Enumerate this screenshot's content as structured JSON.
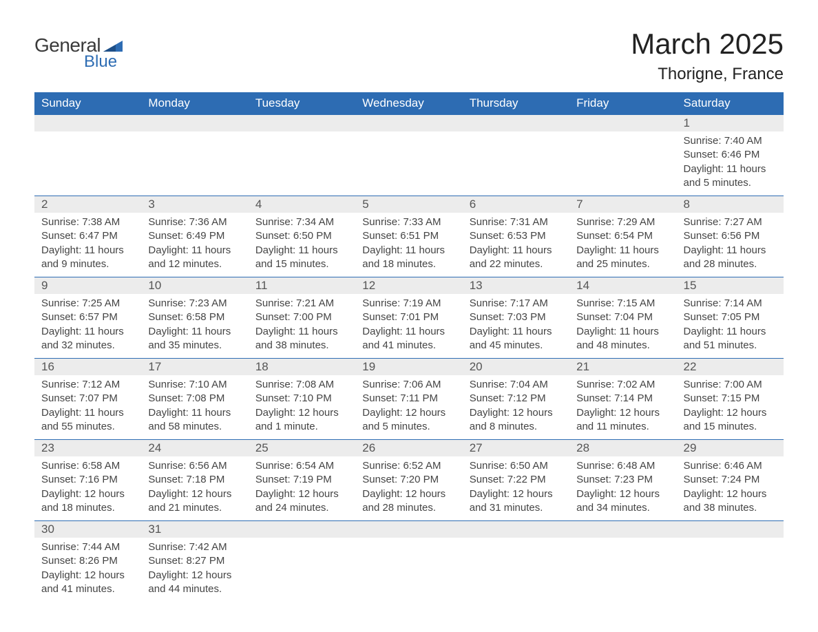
{
  "brand": {
    "word1": "General",
    "word2": "Blue",
    "icon_color": "#2d6cb3",
    "text_gray": "#3a3a3a"
  },
  "title": {
    "month_year": "March 2025",
    "location": "Thorigne, France"
  },
  "colors": {
    "header_bg": "#2d6cb3",
    "header_text": "#ffffff",
    "daynum_bg": "#ececec",
    "daynum_text": "#555555",
    "body_text": "#444444",
    "row_divider": "#2d6cb3",
    "page_bg": "#ffffff"
  },
  "layout": {
    "columns": 7,
    "rows": 6,
    "header_fontsize": 17,
    "daynum_fontsize": 17,
    "content_fontsize": 15,
    "title_fontsize": 42,
    "location_fontsize": 24
  },
  "weekdays": [
    "Sunday",
    "Monday",
    "Tuesday",
    "Wednesday",
    "Thursday",
    "Friday",
    "Saturday"
  ],
  "weeks": [
    [
      {
        "n": "",
        "sunrise": "",
        "sunset": "",
        "daylight": ""
      },
      {
        "n": "",
        "sunrise": "",
        "sunset": "",
        "daylight": ""
      },
      {
        "n": "",
        "sunrise": "",
        "sunset": "",
        "daylight": ""
      },
      {
        "n": "",
        "sunrise": "",
        "sunset": "",
        "daylight": ""
      },
      {
        "n": "",
        "sunrise": "",
        "sunset": "",
        "daylight": ""
      },
      {
        "n": "",
        "sunrise": "",
        "sunset": "",
        "daylight": ""
      },
      {
        "n": "1",
        "sunrise": "Sunrise: 7:40 AM",
        "sunset": "Sunset: 6:46 PM",
        "daylight": "Daylight: 11 hours and 5 minutes."
      }
    ],
    [
      {
        "n": "2",
        "sunrise": "Sunrise: 7:38 AM",
        "sunset": "Sunset: 6:47 PM",
        "daylight": "Daylight: 11 hours and 9 minutes."
      },
      {
        "n": "3",
        "sunrise": "Sunrise: 7:36 AM",
        "sunset": "Sunset: 6:49 PM",
        "daylight": "Daylight: 11 hours and 12 minutes."
      },
      {
        "n": "4",
        "sunrise": "Sunrise: 7:34 AM",
        "sunset": "Sunset: 6:50 PM",
        "daylight": "Daylight: 11 hours and 15 minutes."
      },
      {
        "n": "5",
        "sunrise": "Sunrise: 7:33 AM",
        "sunset": "Sunset: 6:51 PM",
        "daylight": "Daylight: 11 hours and 18 minutes."
      },
      {
        "n": "6",
        "sunrise": "Sunrise: 7:31 AM",
        "sunset": "Sunset: 6:53 PM",
        "daylight": "Daylight: 11 hours and 22 minutes."
      },
      {
        "n": "7",
        "sunrise": "Sunrise: 7:29 AM",
        "sunset": "Sunset: 6:54 PM",
        "daylight": "Daylight: 11 hours and 25 minutes."
      },
      {
        "n": "8",
        "sunrise": "Sunrise: 7:27 AM",
        "sunset": "Sunset: 6:56 PM",
        "daylight": "Daylight: 11 hours and 28 minutes."
      }
    ],
    [
      {
        "n": "9",
        "sunrise": "Sunrise: 7:25 AM",
        "sunset": "Sunset: 6:57 PM",
        "daylight": "Daylight: 11 hours and 32 minutes."
      },
      {
        "n": "10",
        "sunrise": "Sunrise: 7:23 AM",
        "sunset": "Sunset: 6:58 PM",
        "daylight": "Daylight: 11 hours and 35 minutes."
      },
      {
        "n": "11",
        "sunrise": "Sunrise: 7:21 AM",
        "sunset": "Sunset: 7:00 PM",
        "daylight": "Daylight: 11 hours and 38 minutes."
      },
      {
        "n": "12",
        "sunrise": "Sunrise: 7:19 AM",
        "sunset": "Sunset: 7:01 PM",
        "daylight": "Daylight: 11 hours and 41 minutes."
      },
      {
        "n": "13",
        "sunrise": "Sunrise: 7:17 AM",
        "sunset": "Sunset: 7:03 PM",
        "daylight": "Daylight: 11 hours and 45 minutes."
      },
      {
        "n": "14",
        "sunrise": "Sunrise: 7:15 AM",
        "sunset": "Sunset: 7:04 PM",
        "daylight": "Daylight: 11 hours and 48 minutes."
      },
      {
        "n": "15",
        "sunrise": "Sunrise: 7:14 AM",
        "sunset": "Sunset: 7:05 PM",
        "daylight": "Daylight: 11 hours and 51 minutes."
      }
    ],
    [
      {
        "n": "16",
        "sunrise": "Sunrise: 7:12 AM",
        "sunset": "Sunset: 7:07 PM",
        "daylight": "Daylight: 11 hours and 55 minutes."
      },
      {
        "n": "17",
        "sunrise": "Sunrise: 7:10 AM",
        "sunset": "Sunset: 7:08 PM",
        "daylight": "Daylight: 11 hours and 58 minutes."
      },
      {
        "n": "18",
        "sunrise": "Sunrise: 7:08 AM",
        "sunset": "Sunset: 7:10 PM",
        "daylight": "Daylight: 12 hours and 1 minute."
      },
      {
        "n": "19",
        "sunrise": "Sunrise: 7:06 AM",
        "sunset": "Sunset: 7:11 PM",
        "daylight": "Daylight: 12 hours and 5 minutes."
      },
      {
        "n": "20",
        "sunrise": "Sunrise: 7:04 AM",
        "sunset": "Sunset: 7:12 PM",
        "daylight": "Daylight: 12 hours and 8 minutes."
      },
      {
        "n": "21",
        "sunrise": "Sunrise: 7:02 AM",
        "sunset": "Sunset: 7:14 PM",
        "daylight": "Daylight: 12 hours and 11 minutes."
      },
      {
        "n": "22",
        "sunrise": "Sunrise: 7:00 AM",
        "sunset": "Sunset: 7:15 PM",
        "daylight": "Daylight: 12 hours and 15 minutes."
      }
    ],
    [
      {
        "n": "23",
        "sunrise": "Sunrise: 6:58 AM",
        "sunset": "Sunset: 7:16 PM",
        "daylight": "Daylight: 12 hours and 18 minutes."
      },
      {
        "n": "24",
        "sunrise": "Sunrise: 6:56 AM",
        "sunset": "Sunset: 7:18 PM",
        "daylight": "Daylight: 12 hours and 21 minutes."
      },
      {
        "n": "25",
        "sunrise": "Sunrise: 6:54 AM",
        "sunset": "Sunset: 7:19 PM",
        "daylight": "Daylight: 12 hours and 24 minutes."
      },
      {
        "n": "26",
        "sunrise": "Sunrise: 6:52 AM",
        "sunset": "Sunset: 7:20 PM",
        "daylight": "Daylight: 12 hours and 28 minutes."
      },
      {
        "n": "27",
        "sunrise": "Sunrise: 6:50 AM",
        "sunset": "Sunset: 7:22 PM",
        "daylight": "Daylight: 12 hours and 31 minutes."
      },
      {
        "n": "28",
        "sunrise": "Sunrise: 6:48 AM",
        "sunset": "Sunset: 7:23 PM",
        "daylight": "Daylight: 12 hours and 34 minutes."
      },
      {
        "n": "29",
        "sunrise": "Sunrise: 6:46 AM",
        "sunset": "Sunset: 7:24 PM",
        "daylight": "Daylight: 12 hours and 38 minutes."
      }
    ],
    [
      {
        "n": "30",
        "sunrise": "Sunrise: 7:44 AM",
        "sunset": "Sunset: 8:26 PM",
        "daylight": "Daylight: 12 hours and 41 minutes."
      },
      {
        "n": "31",
        "sunrise": "Sunrise: 7:42 AM",
        "sunset": "Sunset: 8:27 PM",
        "daylight": "Daylight: 12 hours and 44 minutes."
      },
      {
        "n": "",
        "sunrise": "",
        "sunset": "",
        "daylight": ""
      },
      {
        "n": "",
        "sunrise": "",
        "sunset": "",
        "daylight": ""
      },
      {
        "n": "",
        "sunrise": "",
        "sunset": "",
        "daylight": ""
      },
      {
        "n": "",
        "sunrise": "",
        "sunset": "",
        "daylight": ""
      },
      {
        "n": "",
        "sunrise": "",
        "sunset": "",
        "daylight": ""
      }
    ]
  ]
}
